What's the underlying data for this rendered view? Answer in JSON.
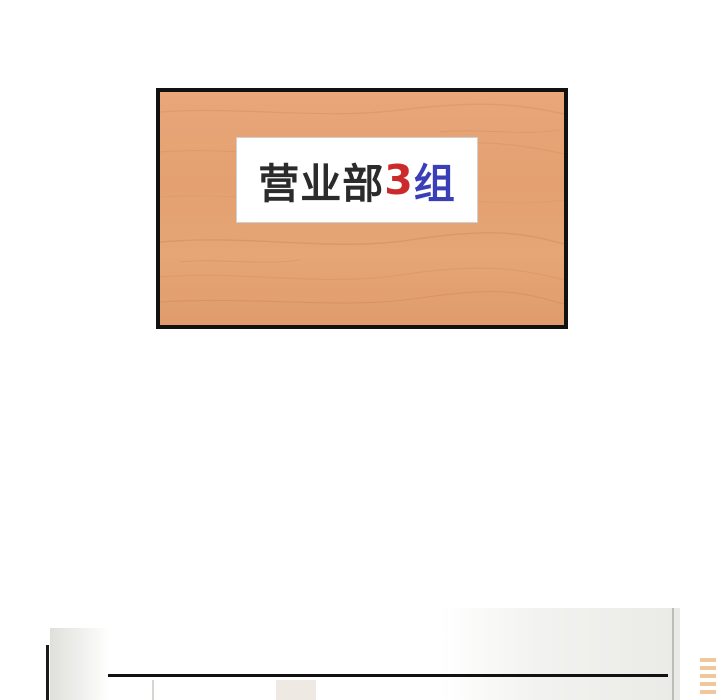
{
  "sign": {
    "part1": "营业部",
    "number": "3",
    "group": "组"
  },
  "colors": {
    "panel_border": "#111111",
    "wood": "#e3a070",
    "sign_text": "#2b2b2b",
    "number_red": "#cc2a2a",
    "group_blue": "#3a3fb8"
  }
}
